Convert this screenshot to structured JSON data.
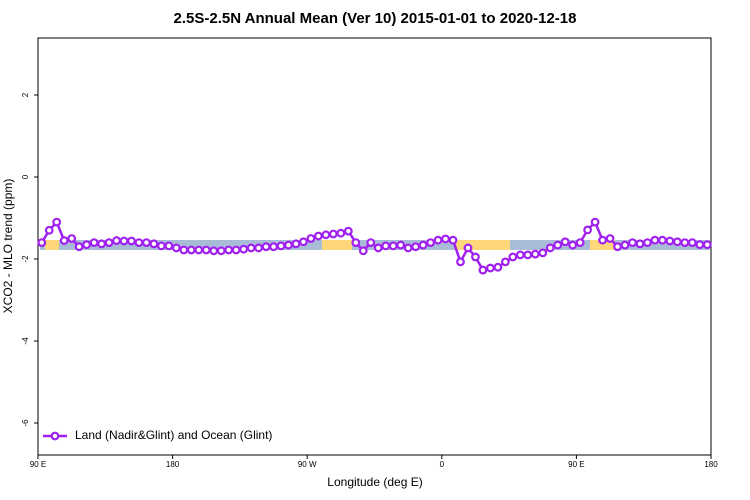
{
  "chart_data": {
    "type": "line",
    "title": "2.5S-2.5N Annual Mean (Ver 10)   2015-01-01 to 2020-12-18",
    "x_label": "Longitude (deg E)",
    "y_label": "XCO2 - MLO trend (ppm)",
    "xlim": [
      90,
      540
    ],
    "ylim": [
      -6.78,
      3.39
    ],
    "xticks": [
      {
        "value": 90,
        "label": "90 E"
      },
      180,
      {
        "value": 270,
        "label": "90 W"
      },
      {
        "value": 360,
        "label": "0"
      },
      {
        "value": 450,
        "label": "90 E"
      },
      {
        "value": 540,
        "label": "180"
      }
    ],
    "yticks": [
      2,
      0,
      -2,
      -4,
      -6
    ],
    "legend": "bottom-left",
    "x": [
      92.5,
      97.5,
      102.5,
      107.5,
      112.5,
      117.5,
      122.5,
      127.5,
      132.5,
      137.5,
      142.5,
      147.5,
      152.5,
      157.5,
      162.5,
      167.5,
      172.5,
      177.5,
      182.5,
      187.5,
      192.5,
      197.5,
      202.5,
      207.5,
      212.5,
      217.5,
      222.5,
      227.5,
      232.5,
      237.5,
      242.5,
      247.5,
      252.5,
      257.5,
      262.5,
      267.5,
      272.5,
      277.5,
      282.5,
      287.5,
      292.5,
      297.5,
      302.5,
      307.5,
      312.5,
      317.5,
      322.5,
      327.5,
      332.5,
      337.5,
      342.5,
      347.5,
      352.5,
      357.5,
      362.5,
      367.5,
      372.5,
      377.5,
      382.5,
      387.5,
      392.5,
      397.5,
      402.5,
      407.5,
      412.5,
      417.5,
      422.5,
      427.5,
      432.5,
      437.5,
      442.5,
      447.5,
      452.5,
      457.5,
      462.5,
      467.5,
      472.5,
      477.5,
      482.5,
      487.5,
      492.5,
      497.5,
      502.5,
      507.5,
      512.5,
      517.5,
      522.5,
      527.5,
      532.5,
      537.5
    ],
    "series": [
      {
        "name": "Land (Nadir&Glint) and Ocean (Glint)",
        "color": "#a020f0",
        "values": [
          -1.6,
          -1.3,
          -1.1,
          -1.55,
          -1.5,
          -1.7,
          -1.65,
          -1.6,
          -1.63,
          -1.6,
          -1.55,
          -1.56,
          -1.56,
          -1.6,
          -1.6,
          -1.63,
          -1.68,
          -1.68,
          -1.73,
          -1.78,
          -1.78,
          -1.78,
          -1.78,
          -1.8,
          -1.8,
          -1.78,
          -1.78,
          -1.76,
          -1.73,
          -1.73,
          -1.7,
          -1.7,
          -1.68,
          -1.66,
          -1.63,
          -1.58,
          -1.5,
          -1.44,
          -1.41,
          -1.39,
          -1.37,
          -1.32,
          -1.6,
          -1.8,
          -1.6,
          -1.73,
          -1.68,
          -1.68,
          -1.66,
          -1.73,
          -1.7,
          -1.66,
          -1.6,
          -1.54,
          -1.51,
          -1.54,
          -2.07,
          -1.73,
          -1.95,
          -2.27,
          -2.22,
          -2.2,
          -2.07,
          -1.95,
          -1.9,
          -1.9,
          -1.88,
          -1.85,
          -1.73,
          -1.66,
          -1.58,
          -1.66,
          -1.6,
          -1.29,
          -1.1,
          -1.54,
          -1.5,
          -1.7,
          -1.66,
          -1.6,
          -1.63,
          -1.6,
          -1.54,
          -1.54,
          -1.56,
          -1.58,
          -1.6,
          -1.6,
          -1.65,
          -1.65
        ]
      }
    ]
  }
}
